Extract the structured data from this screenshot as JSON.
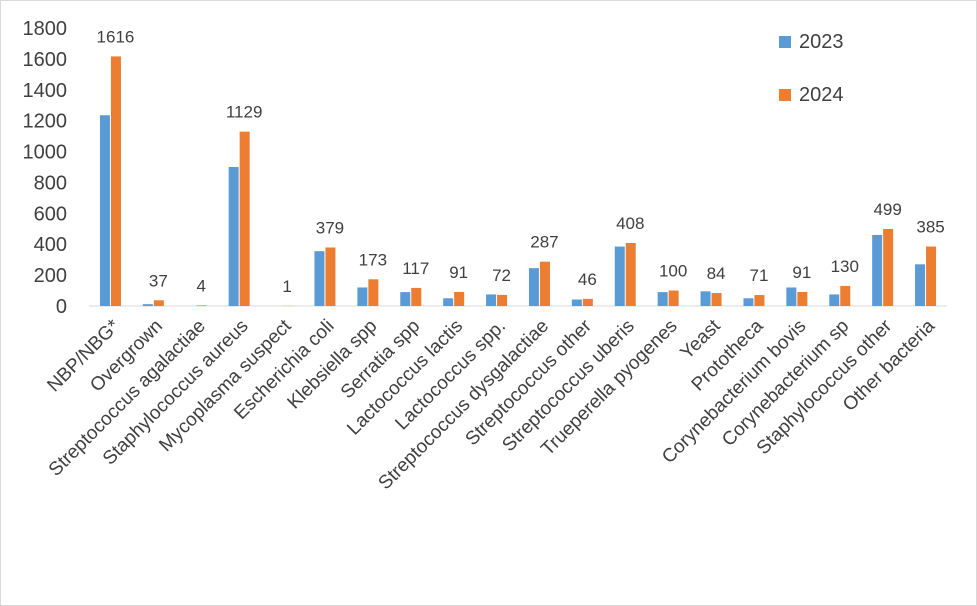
{
  "chart_data": {
    "type": "bar",
    "title": "",
    "xlabel": "",
    "ylabel": "",
    "ylim": [
      0,
      1800
    ],
    "yticks": [
      0,
      200,
      400,
      600,
      800,
      1000,
      1200,
      1400,
      1600,
      1800
    ],
    "grid": false,
    "legend_position": "top-right",
    "categories": [
      "NBP/NBG*",
      "Overgrown",
      "Streptococcus agalactiae",
      "Staphylococcus aureus",
      "Mycoplasma suspect",
      "Escherichia coli",
      "Klebsiella spp",
      "Serratia spp",
      "Lactococcus lactis",
      "Lactococcus spp.",
      "Streptococcus dysgalactiae",
      "Streptococcus other",
      "Streptococcus uberis",
      "Trueperella pyogenes",
      "Yeast",
      "Prototheca",
      "Corynebacterium bovis",
      "Corynebacterium sp",
      "Staphylococcus other",
      "Other bacteria"
    ],
    "series": [
      {
        "name": "2023",
        "color": "#5b9bd5",
        "values": [
          1235,
          12,
          0,
          900,
          0,
          355,
          120,
          90,
          50,
          75,
          245,
          42,
          385,
          90,
          95,
          50,
          120,
          75,
          460,
          270
        ]
      },
      {
        "name": "2024",
        "color": "#ed7d31",
        "values": [
          1616,
          37,
          4,
          1129,
          1,
          379,
          173,
          117,
          91,
          72,
          287,
          46,
          408,
          100,
          84,
          71,
          91,
          130,
          499,
          385
        ],
        "data_labels": [
          "1616",
          "37",
          "4",
          "1129",
          "1",
          "379",
          "173",
          "117",
          "91",
          "72",
          "287",
          "46",
          "408",
          "100",
          "84",
          "71",
          "91",
          "130",
          "499",
          "385"
        ]
      }
    ]
  }
}
